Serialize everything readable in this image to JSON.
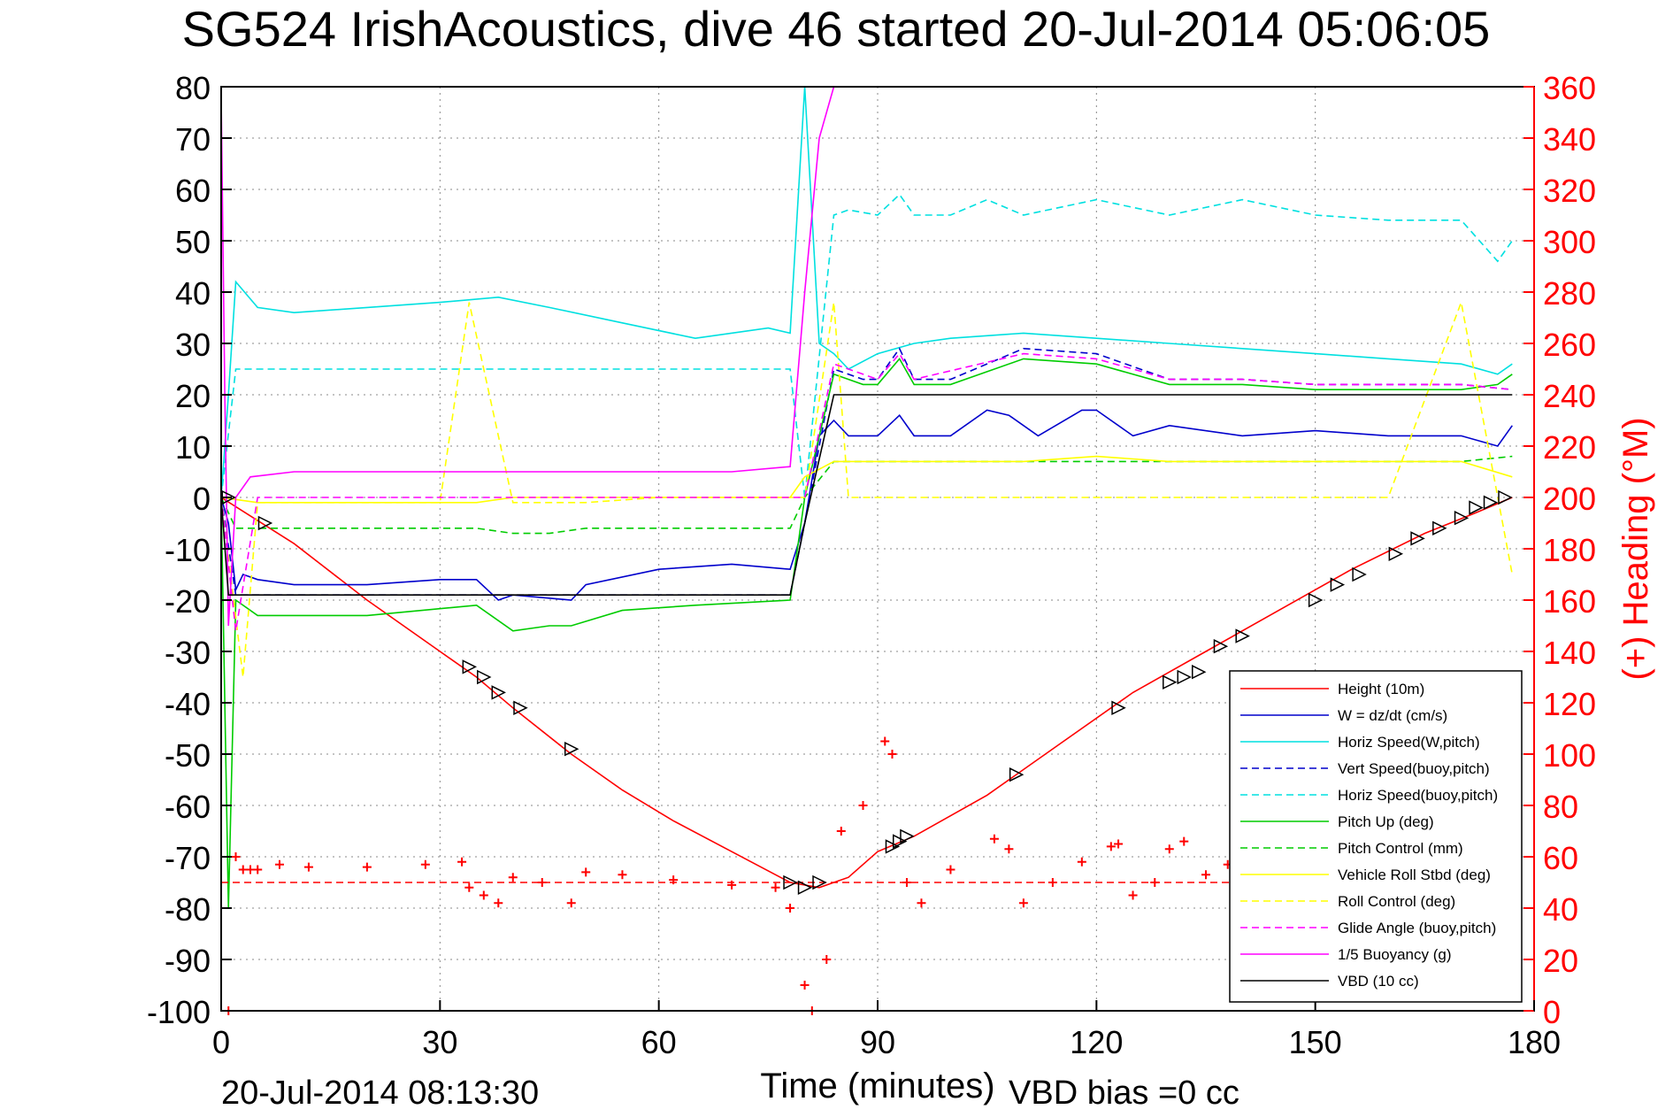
{
  "chart_data": {
    "type": "line",
    "title": "SG524 IrishAcoustics, dive 46 started 20-Jul-2014 05:06:05",
    "xlabel": "Time (minutes)",
    "ylabel_right": "(+) Heading (°M)",
    "footer_left": "20-Jul-2014 08:13:30",
    "footer_right": "VBD bias =0 cc",
    "xlim": [
      0,
      180
    ],
    "ylim": [
      -100,
      80
    ],
    "ylim_right": [
      0,
      360
    ],
    "x_ticks": [
      0,
      30,
      60,
      90,
      120,
      150,
      180
    ],
    "y_ticks": [
      80,
      70,
      60,
      50,
      40,
      30,
      20,
      10,
      0,
      -10,
      -20,
      -30,
      -40,
      -50,
      -60,
      -70,
      -80,
      -90,
      -100
    ],
    "y_ticks_right": [
      360,
      340,
      320,
      300,
      280,
      260,
      240,
      220,
      200,
      180,
      160,
      140,
      120,
      100,
      80,
      60,
      40,
      20,
      0
    ],
    "grid": true,
    "legend_position": "lower-right",
    "colors": {
      "height": "#ff0000",
      "w": "#0000cc",
      "horiz": "#00e0e0",
      "pitch": "#00cc00",
      "roll": "#ffff00",
      "glide": "#ff00ff",
      "buoy": "#ff00ff",
      "vbd": "#000000",
      "heading": "#ff0000",
      "right_axis": "#ff0000"
    },
    "series": [
      {
        "name": "Height (10m)",
        "key": "height",
        "style": "solid",
        "x": [
          0,
          10,
          20,
          30,
          35,
          40,
          48,
          55,
          62,
          70,
          78,
          82,
          86,
          90,
          95,
          105,
          115,
          125,
          135,
          145,
          155,
          165,
          172,
          177
        ],
        "y": [
          0,
          -9,
          -20,
          -30,
          -35,
          -41,
          -50,
          -57,
          -63,
          -69,
          -75,
          -76,
          -74,
          -69,
          -66,
          -58,
          -48,
          -38,
          -30,
          -22,
          -14,
          -7,
          -3,
          0
        ]
      },
      {
        "name": "W = dz/dt (cm/s)",
        "key": "w",
        "style": "solid",
        "x": [
          0,
          1,
          2,
          3,
          5,
          10,
          20,
          30,
          35,
          38,
          40,
          48,
          50,
          60,
          70,
          78,
          80,
          82,
          84,
          86,
          90,
          93,
          95,
          100,
          105,
          108,
          112,
          118,
          120,
          125,
          130,
          140,
          150,
          160,
          170,
          175,
          177
        ],
        "y": [
          0,
          -5,
          -18,
          -15,
          -16,
          -17,
          -17,
          -16,
          -16,
          -20,
          -19,
          -20,
          -17,
          -14,
          -13,
          -14,
          -5,
          12,
          15,
          12,
          12,
          16,
          12,
          12,
          17,
          16,
          12,
          17,
          17,
          12,
          14,
          12,
          13,
          12,
          12,
          10,
          14
        ]
      },
      {
        "name": "Horiz Speed(W,pitch)",
        "key": "horiz",
        "style": "solid",
        "x": [
          0,
          1,
          2,
          5,
          10,
          20,
          30,
          38,
          45,
          55,
          65,
          75,
          78,
          80,
          82,
          84,
          86,
          90,
          95,
          100,
          110,
          120,
          130,
          140,
          150,
          160,
          170,
          175,
          177
        ],
        "y": [
          0,
          20,
          42,
          37,
          36,
          37,
          38,
          39,
          37,
          34,
          31,
          33,
          32,
          80,
          30,
          28,
          25,
          28,
          30,
          31,
          32,
          31,
          30,
          29,
          28,
          27,
          26,
          24,
          26
        ]
      },
      {
        "name": "Vert Speed(buoy,pitch)",
        "key": "w",
        "style": "dashed",
        "x": [
          0,
          2,
          5,
          20,
          40,
          60,
          78,
          80,
          84,
          88,
          90,
          93,
          95,
          100,
          110,
          120,
          130,
          140,
          150,
          160,
          170,
          177
        ],
        "y": [
          0,
          -19,
          -19,
          -19,
          -19,
          -19,
          -19,
          -5,
          25,
          23,
          23,
          29,
          23,
          23,
          29,
          28,
          23,
          23,
          22,
          22,
          22,
          21
        ]
      },
      {
        "name": "Horiz Speed(buoy,pitch)",
        "key": "horiz",
        "style": "dashed",
        "x": [
          0,
          2,
          5,
          20,
          40,
          60,
          78,
          80,
          84,
          86,
          90,
          93,
          95,
          100,
          105,
          110,
          120,
          130,
          140,
          150,
          160,
          170,
          175,
          177
        ],
        "y": [
          0,
          25,
          25,
          25,
          25,
          25,
          25,
          0,
          55,
          56,
          55,
          59,
          55,
          55,
          58,
          55,
          58,
          55,
          58,
          55,
          54,
          54,
          46,
          50
        ]
      },
      {
        "name": "Pitch Up (deg)",
        "key": "pitch",
        "style": "solid",
        "x": [
          0,
          1,
          2,
          5,
          20,
          35,
          40,
          45,
          48,
          55,
          65,
          78,
          80,
          84,
          88,
          90,
          93,
          95,
          100,
          110,
          120,
          130,
          140,
          150,
          160,
          170,
          175,
          177
        ],
        "y": [
          0,
          -80,
          -20,
          -23,
          -23,
          -21,
          -26,
          -25,
          -25,
          -22,
          -21,
          -20,
          0,
          24,
          22,
          22,
          27,
          22,
          22,
          27,
          26,
          22,
          22,
          21,
          21,
          21,
          22,
          24
        ]
      },
      {
        "name": "Pitch Control (mm)",
        "key": "pitch",
        "style": "dashed",
        "x": [
          0,
          2,
          5,
          20,
          35,
          40,
          45,
          50,
          60,
          78,
          80,
          84,
          90,
          100,
          110,
          120,
          130,
          140,
          150,
          160,
          170,
          177
        ],
        "y": [
          0,
          -6,
          -6,
          -6,
          -6,
          -7,
          -7,
          -6,
          -6,
          -6,
          0,
          7,
          7,
          7,
          7,
          7,
          7,
          7,
          7,
          7,
          7,
          8
        ]
      },
      {
        "name": "Vehicle Roll Stbd (deg)",
        "key": "roll",
        "style": "solid",
        "x": [
          0,
          5,
          20,
          35,
          40,
          50,
          60,
          78,
          80,
          84,
          90,
          100,
          110,
          120,
          130,
          140,
          150,
          160,
          170,
          177
        ],
        "y": [
          0,
          -1,
          -1,
          -1,
          0,
          0,
          0,
          0,
          4,
          7,
          7,
          7,
          7,
          8,
          7,
          7,
          7,
          7,
          7,
          4
        ]
      },
      {
        "name": "Roll Control (deg)",
        "key": "roll",
        "style": "dashed",
        "x": [
          0,
          3,
          5,
          20,
          30,
          34,
          40,
          50,
          60,
          78,
          80,
          84,
          86,
          90,
          100,
          110,
          120,
          130,
          140,
          150,
          160,
          170,
          177
        ],
        "y": [
          0,
          -35,
          -1,
          -1,
          -1,
          38,
          -1,
          -1,
          0,
          0,
          0,
          38,
          0,
          0,
          0,
          0,
          0,
          0,
          0,
          0,
          0,
          38,
          -15
        ]
      },
      {
        "name": "Glide Angle (buoy,pitch)",
        "key": "glide",
        "style": "dashed",
        "x": [
          0,
          2,
          5,
          20,
          40,
          60,
          78,
          80,
          84,
          90,
          93,
          95,
          110,
          120,
          130,
          140,
          150,
          160,
          170,
          177
        ],
        "y": [
          0,
          -26,
          0,
          0,
          0,
          0,
          0,
          0,
          26,
          23,
          28,
          23,
          28,
          27,
          23,
          23,
          22,
          22,
          22,
          21
        ]
      },
      {
        "name": "1/5 Buoyancy (g)",
        "key": "buoy",
        "style": "solid",
        "x": [
          0,
          0.5,
          1,
          2,
          4,
          10,
          30,
          50,
          70,
          78,
          80,
          82,
          84
        ],
        "y": [
          78,
          20,
          -25,
          0,
          4,
          5,
          5,
          5,
          5,
          6,
          40,
          70,
          80
        ]
      },
      {
        "name": "VBD (10 cc)",
        "key": "vbd",
        "style": "solid",
        "x": [
          0,
          1,
          2,
          10,
          30,
          50,
          70,
          78,
          80,
          84,
          86,
          100,
          120,
          140,
          160,
          177
        ],
        "y": [
          0,
          -19,
          -19,
          -19,
          -19,
          -19,
          -19,
          -19,
          -5,
          20,
          20,
          20,
          20,
          20,
          20,
          20
        ]
      },
      {
        "name": "Heading",
        "key": "heading",
        "axis": "right",
        "style": "plus",
        "legend": false,
        "x": [
          1,
          2,
          3,
          4,
          5,
          8,
          12,
          20,
          28,
          33,
          34,
          36,
          38,
          40,
          44,
          48,
          50,
          55,
          62,
          70,
          76,
          78,
          80,
          81,
          83,
          85,
          88,
          91,
          92,
          94,
          96,
          100,
          106,
          108,
          110,
          114,
          118,
          122,
          123,
          125,
          128,
          130,
          132,
          135,
          138,
          140
        ],
        "y": [
          0,
          60,
          55,
          55,
          55,
          57,
          56,
          56,
          57,
          58,
          48,
          45,
          42,
          52,
          50,
          42,
          54,
          53,
          51,
          49,
          48,
          40,
          10,
          0,
          20,
          70,
          80,
          105,
          100,
          50,
          42,
          55,
          67,
          63,
          42,
          50,
          58,
          64,
          65,
          45,
          50,
          63,
          66,
          53,
          57,
          65
        ]
      },
      {
        "name": "Heading mean",
        "key": "heading",
        "axis": "right",
        "style": "dashed",
        "legend": false,
        "x": [
          0,
          177
        ],
        "y": [
          50,
          50
        ]
      },
      {
        "name": "Markers",
        "key": "vbd",
        "style": "triangles",
        "legend": false,
        "x": [
          1,
          6,
          34,
          36,
          38,
          41,
          48,
          78,
          80,
          82,
          92,
          93,
          94,
          109,
          123,
          130,
          132,
          134,
          137,
          140,
          150,
          153,
          156,
          161,
          164,
          167,
          170,
          172,
          174,
          176
        ],
        "y": [
          0,
          -5,
          -33,
          -35,
          -38,
          -41,
          -49,
          -75,
          -76,
          -75,
          -68,
          -67,
          -66,
          -54,
          -41,
          -36,
          -35,
          -34,
          -29,
          -27,
          -20,
          -17,
          -15,
          -11,
          -8,
          -6,
          -4,
          -2,
          -1,
          0
        ]
      }
    ]
  }
}
